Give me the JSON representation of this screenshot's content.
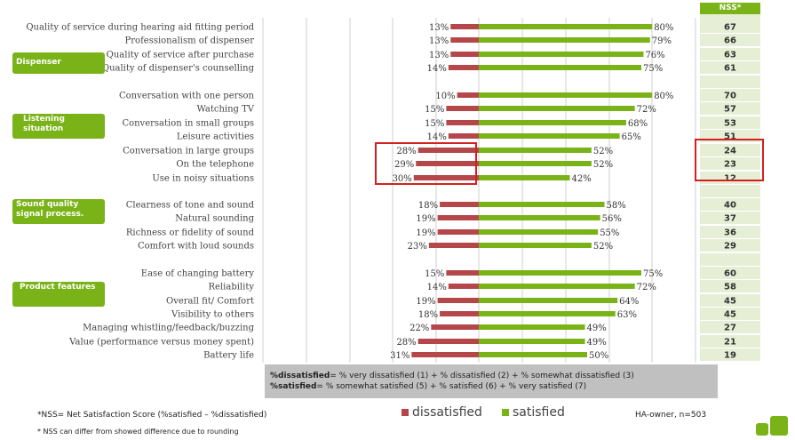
{
  "nss_header": "NSS*",
  "groups": [
    {
      "label": "Dispenser"
    },
    {
      "label": "Listening situation"
    },
    {
      "label": "Sound quality signal process."
    },
    {
      "label": "Product features"
    }
  ],
  "chart_data": {
    "type": "bar",
    "orientation": "horizontal-diverging",
    "categories": [
      "Quality of service during hearing aid fitting period",
      "Professionalism of dispenser",
      "Quality of service after purchase",
      "Quality of dispenser's counselling",
      "Conversation with one person",
      "Watching TV",
      "Conversation in small groups",
      "Leisure activities",
      "Conversation in large groups",
      "On the telephone",
      "Use in noisy situations",
      "Clearness of tone and sound",
      "Natural sounding",
      "Richness or fidelity of sound",
      "Comfort with loud sounds",
      "Ease of changing battery",
      "Reliability",
      "Overall fit/ Comfort",
      "Visibility to others",
      "Managing whistling/feedback/buzzing",
      "Value (performance versus money spent)",
      "Battery life"
    ],
    "series": [
      {
        "name": "dissatisfied",
        "color": "#b5474a",
        "values": [
          13,
          13,
          13,
          14,
          10,
          15,
          15,
          14,
          28,
          29,
          30,
          18,
          19,
          19,
          23,
          15,
          14,
          19,
          18,
          22,
          28,
          31
        ]
      },
      {
        "name": "satisfied",
        "color": "#7ab317",
        "values": [
          80,
          79,
          76,
          75,
          80,
          72,
          68,
          65,
          52,
          52,
          42,
          58,
          56,
          55,
          52,
          75,
          72,
          64,
          63,
          49,
          49,
          50
        ]
      }
    ],
    "nss": [
      67,
      66,
      63,
      61,
      70,
      57,
      53,
      51,
      24,
      23,
      12,
      40,
      37,
      36,
      29,
      60,
      58,
      45,
      45,
      27,
      21,
      19
    ],
    "value_suffix": "%",
    "highlighted_rows": [
      "Conversation in large groups",
      "On the telephone",
      "Use in noisy situations"
    ],
    "grid": true,
    "legend": "bottom"
  },
  "formula": {
    "line1_bold": "%dissatisfied",
    "line1_rest": "= % very dissatisfied (1) + % dissatisfied (2) + % somewhat dissatisfied (3)",
    "line2_bold": "%satisfied",
    "line2_rest": "= % somewhat satisfied (5) + % satisfied (6) + % very satisfied (7)"
  },
  "footnote1": "*NSS= Net Satisfaction Score (%satisfied – %dissatisfied)",
  "footnote2": "* NSS can differ from showed difference due to rounding",
  "legend_dissatisfied": "dissatisfied",
  "legend_satisfied": "satisfied",
  "source": "HA-owner, n=503"
}
